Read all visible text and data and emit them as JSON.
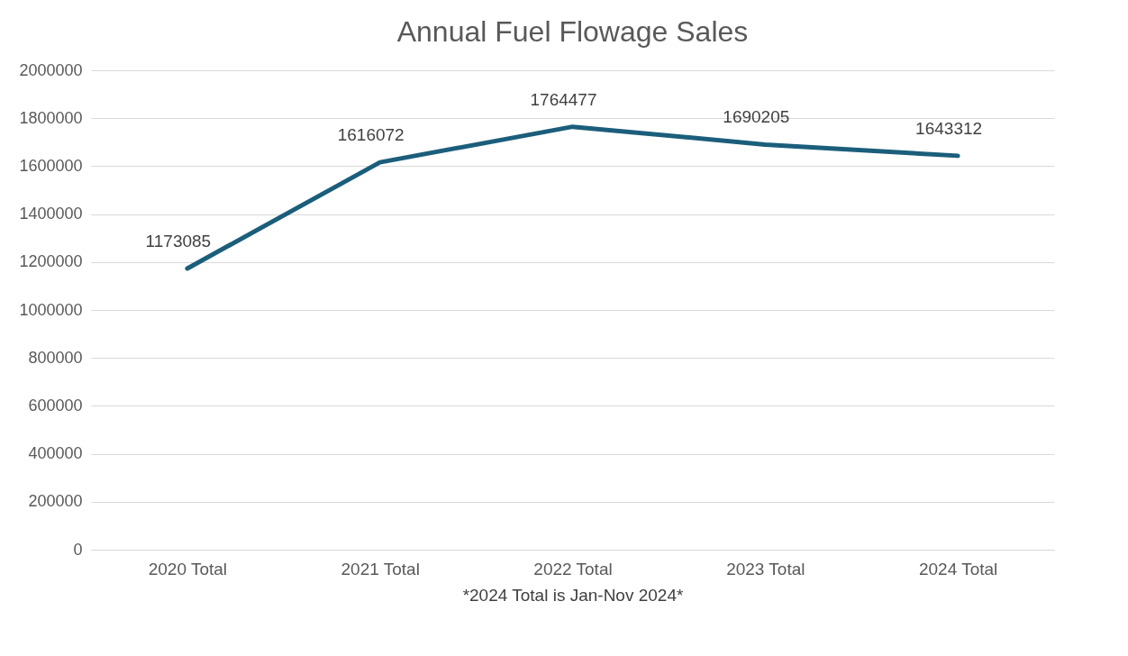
{
  "chart_data": {
    "type": "line",
    "title": "Annual Fuel Flowage Sales",
    "xlabel": "*2024 Total is Jan-Nov 2024*",
    "categories": [
      "2020 Total",
      "2021 Total",
      "2022 Total",
      "2023 Total",
      "2024 Total"
    ],
    "series": [
      {
        "color": "#1b5e7b",
        "values": [
          1173085,
          1616072,
          1764477,
          1690205,
          1643312
        ]
      }
    ],
    "ylim": [
      0,
      2000000
    ],
    "yticks": [
      0,
      200000,
      400000,
      600000,
      800000,
      1000000,
      1200000,
      1400000,
      1600000,
      1800000,
      2000000
    ],
    "grid": "y",
    "data_labels": true,
    "marker": "none",
    "line_style": "solid"
  }
}
